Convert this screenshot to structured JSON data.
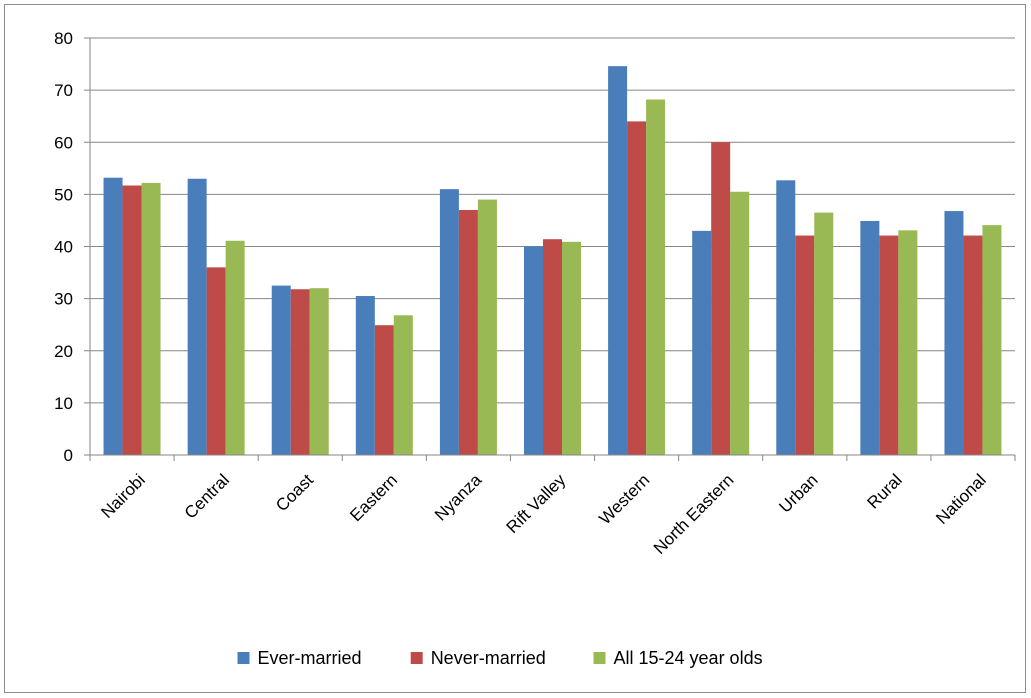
{
  "chart_data": {
    "type": "bar",
    "title": "",
    "xlabel": "",
    "ylabel": "",
    "ylim": [
      0,
      80
    ],
    "yticks": [
      0,
      10,
      20,
      30,
      40,
      50,
      60,
      70,
      80
    ],
    "grid": true,
    "legend_position": "bottom",
    "categories": [
      "Nairobi",
      "Central",
      "Coast",
      "Eastern",
      "Nyanza",
      "Rift Valley",
      "Western",
      "North Eastern",
      "Urban",
      "Rural",
      "National"
    ],
    "series": [
      {
        "name": "Ever-married",
        "color": "#4a7ebb",
        "values": [
          53.2,
          53.0,
          32.5,
          30.5,
          51.0,
          40.0,
          74.6,
          43.0,
          52.7,
          44.9,
          46.8
        ]
      },
      {
        "name": "Never-married",
        "color": "#be4b48",
        "values": [
          51.7,
          36.0,
          31.8,
          24.9,
          47.0,
          41.4,
          64.0,
          60.0,
          42.1,
          42.1,
          42.1
        ]
      },
      {
        "name": "All 15-24  year olds",
        "color": "#98b954",
        "values": [
          52.2,
          41.1,
          32.0,
          26.8,
          49.0,
          40.9,
          68.2,
          50.5,
          46.5,
          43.1,
          44.1
        ]
      }
    ]
  }
}
